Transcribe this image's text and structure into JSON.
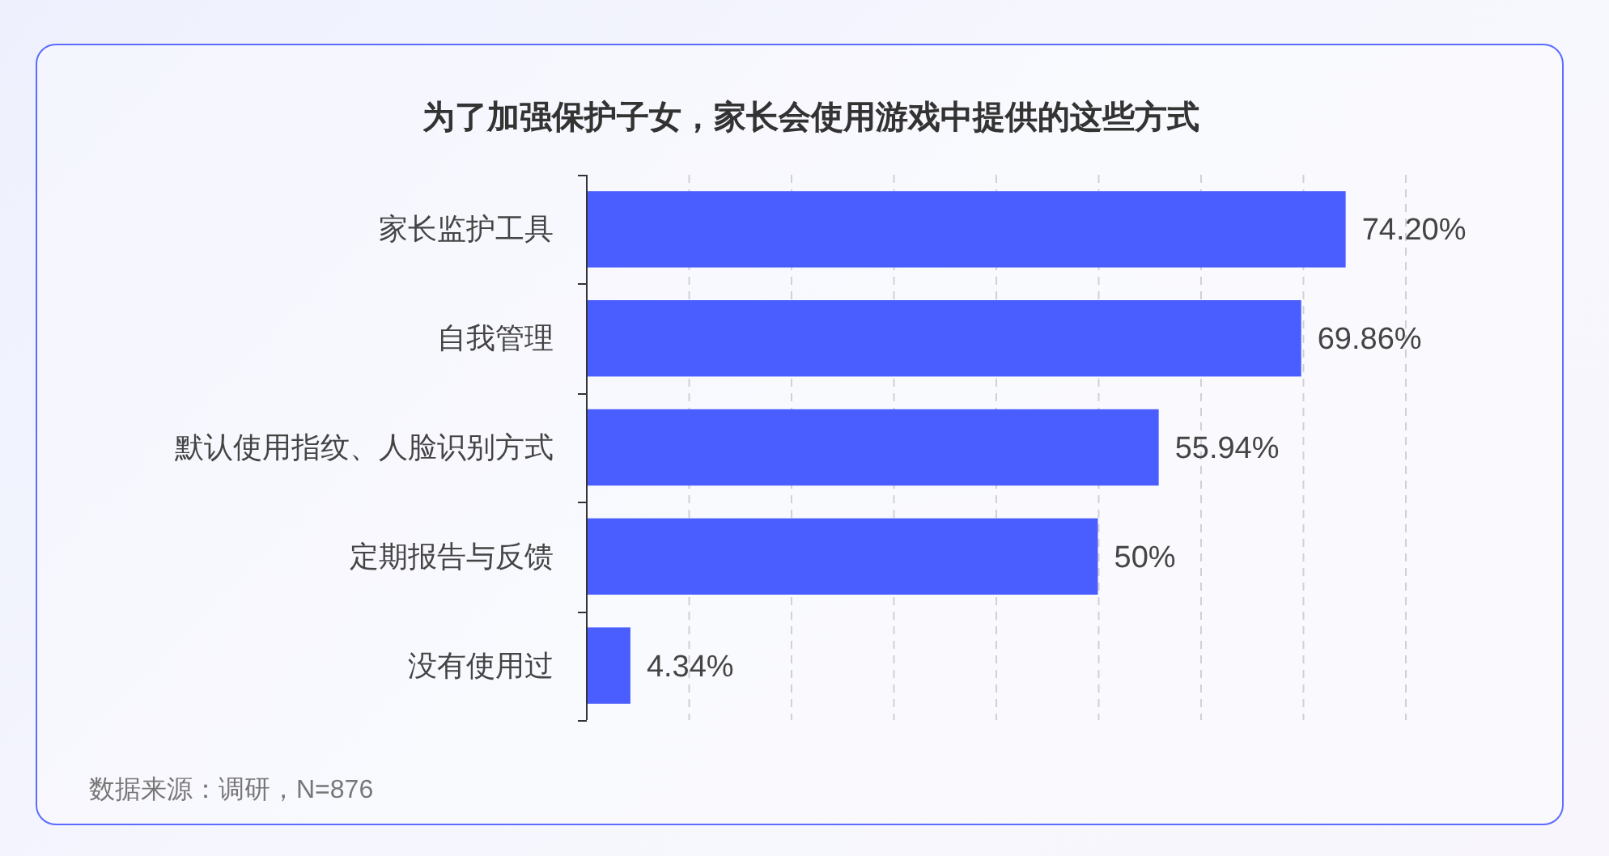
{
  "chart_data": {
    "type": "bar",
    "orientation": "horizontal",
    "title": "为了加强保护子女，家长会使用游戏中提供的这些方式",
    "categories": [
      "家长监护工具",
      "自我管理",
      "默认使用指纹、人脸识别方式",
      "定期报告与反馈",
      "没有使用过"
    ],
    "values": [
      74.2,
      69.86,
      55.94,
      50,
      4.34
    ],
    "value_labels": [
      "74.20%",
      "69.86%",
      "55.94%",
      "50%",
      "4.34%"
    ],
    "color": "#4a5eff",
    "xlim": [
      0,
      80
    ],
    "xticks": [
      {
        "value": 10,
        "label": null
      },
      {
        "value": 20,
        "label": null
      },
      {
        "value": 30,
        "label": null
      },
      {
        "value": 40,
        "label": null
      },
      {
        "value": 50,
        "label": null
      },
      {
        "value": 60,
        "label": null
      },
      {
        "value": 70,
        "label": null
      },
      {
        "value": 80,
        "label": null
      }
    ],
    "grid": "x",
    "annotations": [
      "数据来源：调研，N=876"
    ]
  }
}
